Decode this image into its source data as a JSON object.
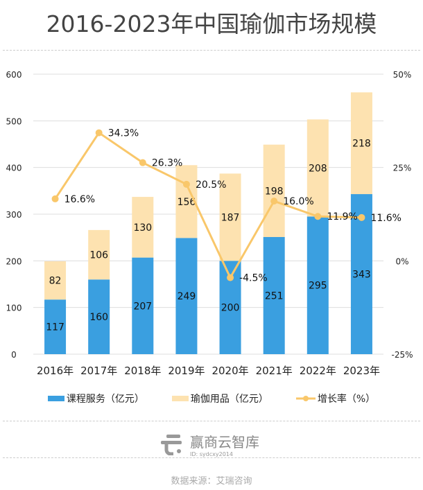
{
  "chart_data": {
    "type": "bar",
    "stacked": true,
    "title": "2016-2023年中国瑜伽市场规模",
    "categories": [
      "2016年",
      "2017年",
      "2018年",
      "2019年",
      "2020年",
      "2021年",
      "2022年",
      "2023年"
    ],
    "series": [
      {
        "name": "课程服务（亿元）",
        "type": "bar",
        "color": "#3A9FE0",
        "values": [
          117,
          160,
          207,
          249,
          200,
          251,
          295,
          343
        ]
      },
      {
        "name": "瑜伽用品（亿元）",
        "type": "bar",
        "color": "#FDE2B0",
        "values": [
          82,
          106,
          130,
          156,
          187,
          198,
          208,
          218
        ]
      },
      {
        "name": "增长率（%）",
        "type": "line",
        "axis": "right",
        "color": "#F9C76A",
        "values": [
          16.6,
          34.3,
          26.3,
          20.5,
          -4.5,
          16.0,
          11.9,
          11.6
        ],
        "labels": [
          "16.6%",
          "34.3%",
          "26.3%",
          "20.5%",
          "-4.5%",
          "16.0%",
          "11.9%",
          "11.6%"
        ]
      }
    ],
    "ylim": [
      0,
      600
    ],
    "yticks": [
      "0",
      "100",
      "200",
      "300",
      "400",
      "500",
      "600"
    ],
    "y2lim": [
      -25,
      50
    ],
    "y2ticks": [
      "-25%",
      "0%",
      "25%",
      "50%"
    ],
    "grid": true,
    "legend": "bottom"
  },
  "watermark": {
    "brand": "赢商云智库",
    "id": "ID: sydcxy2014"
  },
  "source": "数据来源：艾瑞咨询"
}
